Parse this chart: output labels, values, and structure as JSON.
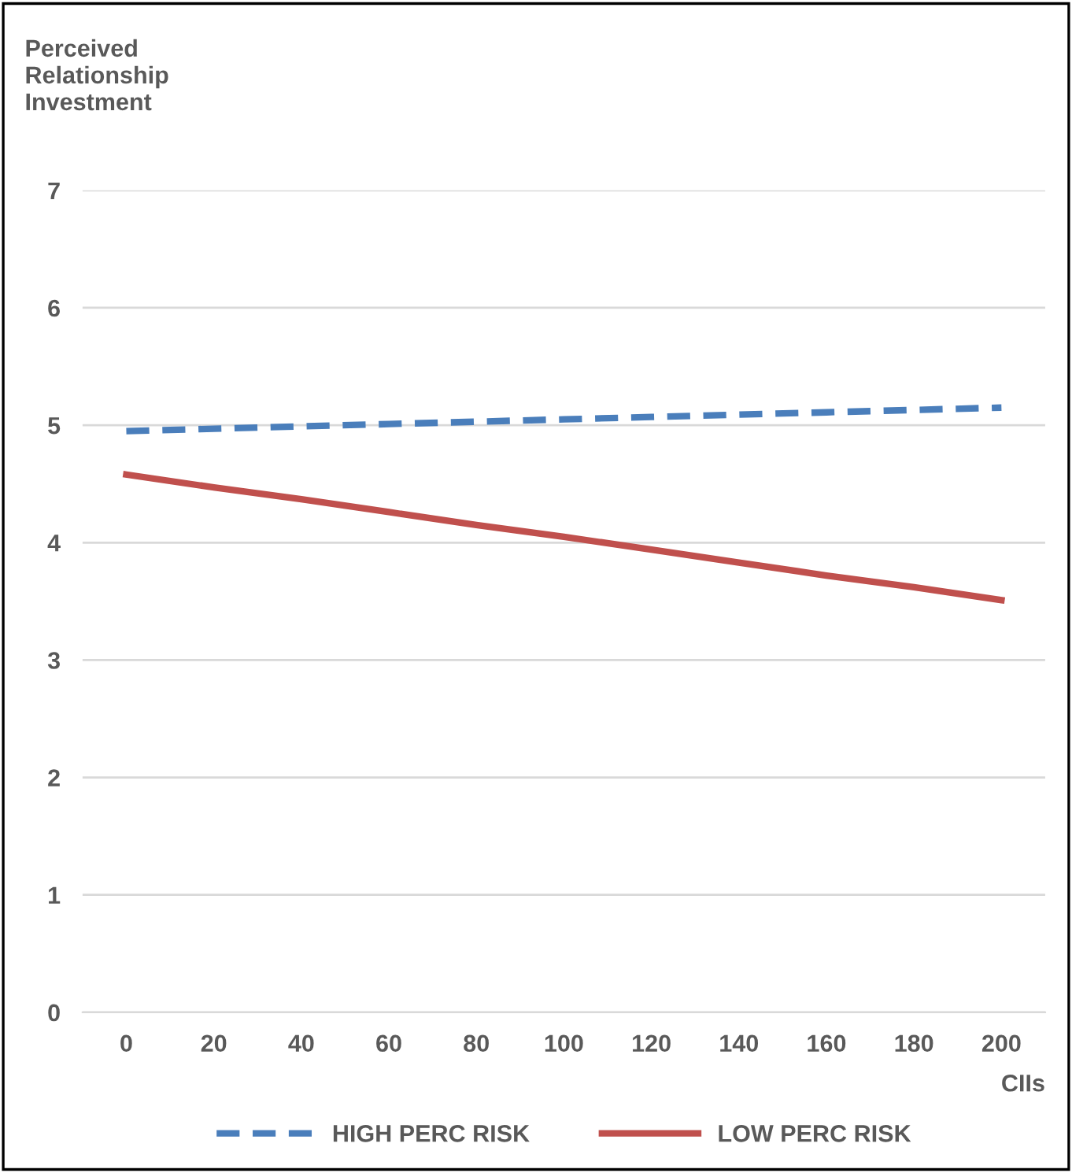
{
  "chart_data": {
    "type": "line",
    "ylabel": "Perceived\nRelationship\nInvestment",
    "xlabel": "CIIs",
    "categories": [
      "0",
      "20",
      "40",
      "60",
      "80",
      "100",
      "120",
      "140",
      "160",
      "180",
      "200"
    ],
    "series": [
      {
        "name": "HIGH PERC RISK",
        "color": "#4a7ebb",
        "line_style": "dashed",
        "values": [
          4.95,
          4.97,
          4.99,
          5.01,
          5.03,
          5.05,
          5.07,
          5.09,
          5.11,
          5.13,
          5.15
        ]
      },
      {
        "name": "LOW PERC RISK",
        "color": "#c0504d",
        "line_style": "solid",
        "values": [
          4.58,
          4.47,
          4.37,
          4.26,
          4.15,
          4.05,
          3.94,
          3.83,
          3.72,
          3.62,
          3.51
        ]
      }
    ],
    "ylim": [
      0,
      7
    ],
    "yticks": [
      0,
      1,
      2,
      3,
      4,
      5,
      6,
      7
    ],
    "grid": "y",
    "legend": "bottom"
  }
}
